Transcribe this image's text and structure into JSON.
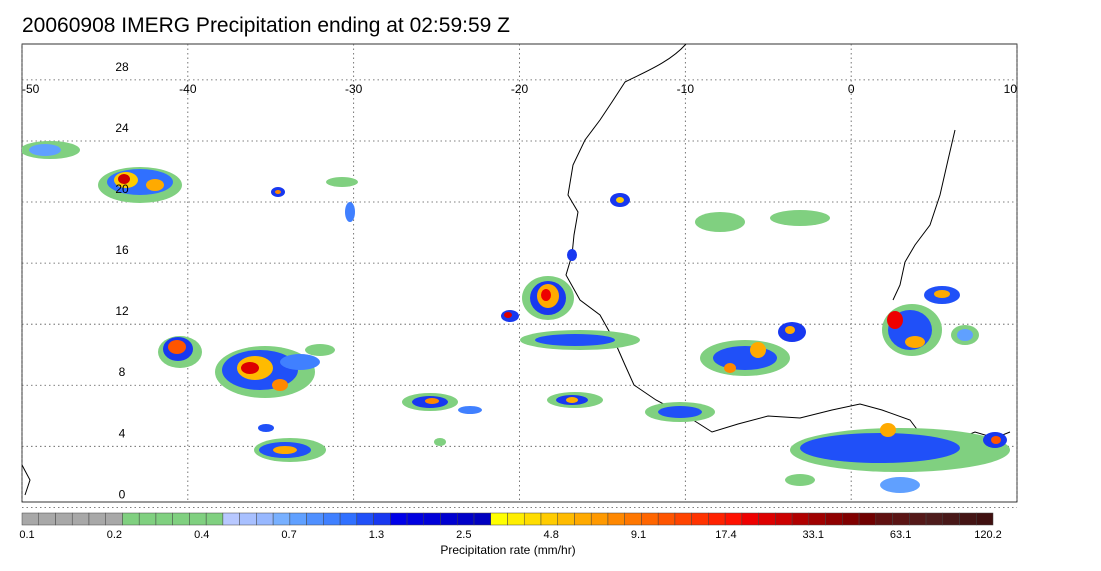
{
  "title": "20060908 IMERG Precipitation ending at 02:59:59 Z",
  "map": {
    "lon_labels": [
      "-50",
      "-40",
      "-30",
      "-20",
      "-10",
      "0",
      "10"
    ],
    "lat_labels": [
      "28",
      "24",
      "20",
      "16",
      "12",
      "8",
      "4",
      "0"
    ],
    "lon_range": [
      -50,
      10
    ],
    "lat_range": [
      -0.5,
      29.5
    ],
    "grid": "dotted"
  },
  "colorbar": {
    "title": "Precipitation rate (mm/hr)",
    "labels": [
      "0.1",
      "0.2",
      "0.4",
      "0.7",
      "1.3",
      "2.5",
      "4.8",
      "9.1",
      "17.4",
      "33.1",
      "63.1",
      "120.2"
    ],
    "colors": [
      "#a8a8a8",
      "#a8a8a8",
      "#a8a8a8",
      "#a8a8a8",
      "#a8a8a8",
      "#a8a8a8",
      "#80d080",
      "#80d080",
      "#80d080",
      "#80d080",
      "#80d080",
      "#80d080",
      "#b8c8ff",
      "#a8c0ff",
      "#98b8ff",
      "#78b0ff",
      "#60a0ff",
      "#5090ff",
      "#4080ff",
      "#3070ff",
      "#2050f8",
      "#1838f0",
      "#0000e8",
      "#0000e0",
      "#0000d8",
      "#0000d0",
      "#0000c8",
      "#0000c0",
      "#ffff00",
      "#ffee00",
      "#ffdd00",
      "#ffcc00",
      "#ffbb00",
      "#ffaa00",
      "#ff9900",
      "#ff8800",
      "#ff7700",
      "#ff6600",
      "#ff5500",
      "#ff4400",
      "#ff3300",
      "#ff2200",
      "#ff1100",
      "#ee0000",
      "#dd0000",
      "#cc0000",
      "#b00000",
      "#a00000",
      "#900000",
      "#800000",
      "#700000",
      "#601010",
      "#5a1414",
      "#541818",
      "#4e1c1c",
      "#481818",
      "#441414",
      "#401010"
    ]
  }
}
